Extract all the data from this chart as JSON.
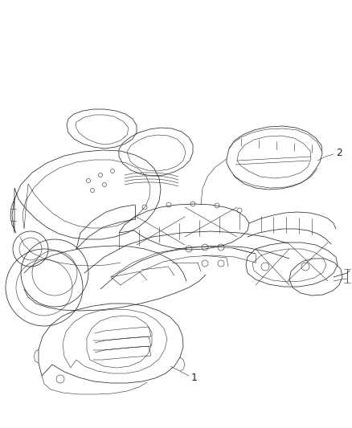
{
  "background_color": "#ffffff",
  "figsize": [
    4.38,
    5.33
  ],
  "dpi": 100,
  "image_b64": ""
}
